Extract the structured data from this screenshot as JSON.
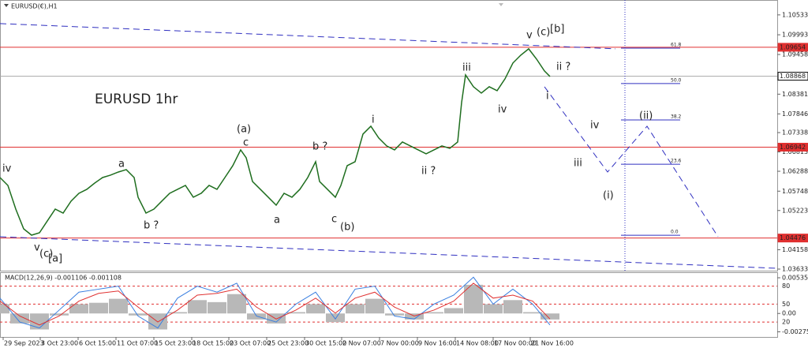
{
  "chart_data": [
    {
      "type": "line",
      "title": "EURUSD(€),H1",
      "subtitle": "EURUSD 1hr",
      "subtitle_color": "#ee1c1c",
      "color": "#1f6e1f",
      "xlim": [
        0,
        985
      ],
      "ylim": [
        1.0359,
        1.1083
      ],
      "xticks": [
        {
          "value": 4,
          "label": "29 Sep 2023"
        },
        {
          "value": 51,
          "label": "3 Oct 23:00"
        },
        {
          "value": 99,
          "label": "6 Oct 15:00"
        },
        {
          "value": 147,
          "label": "11 Oct 07:00"
        },
        {
          "value": 195,
          "label": "15 Oct 23:00"
        },
        {
          "value": 243,
          "label": "18 Oct 15:00"
        },
        {
          "value": 290,
          "label": "23 Oct 07:00"
        },
        {
          "value": 338,
          "label": "25 Oct 23:00"
        },
        {
          "value": 386,
          "label": "30 Oct 15:00"
        },
        {
          "value": 433,
          "label": "2 Nov 07:00"
        },
        {
          "value": 481,
          "label": "7 Nov 00:00"
        },
        {
          "value": 529,
          "label": "9 Nov 16:00"
        },
        {
          "value": 577,
          "label": "14 Nov 08:00"
        },
        {
          "value": 625,
          "label": "17 Nov 00:00"
        },
        {
          "value": 672,
          "label": "21 Nov 16:00"
        }
      ],
      "yticks": [
        1.10533,
        1.09993,
        1.09458,
        1.08381,
        1.07846,
        1.07338,
        1.06813,
        1.06288,
        1.05748,
        1.05223,
        1.04158,
        1.03633
      ],
      "x": [
        0,
        10,
        20,
        30,
        40,
        50,
        60,
        70,
        80,
        90,
        100,
        110,
        120,
        130,
        140,
        150,
        160,
        170,
        175,
        185,
        195,
        205,
        215,
        225,
        235,
        245,
        255,
        265,
        275,
        285,
        295,
        305,
        312,
        320,
        330,
        340,
        350,
        360,
        370,
        380,
        390,
        400,
        405,
        415,
        425,
        432,
        440,
        450,
        460,
        470,
        480,
        490,
        500,
        510,
        520,
        530,
        540,
        550,
        560,
        570,
        580,
        585,
        590,
        600,
        610,
        620,
        630,
        640,
        650,
        660,
        670,
        680,
        690,
        697
      ],
      "values": [
        1.06118,
        1.05904,
        1.05261,
        1.04725,
        1.04554,
        1.04618,
        1.0494,
        1.05261,
        1.05154,
        1.05476,
        1.0569,
        1.05797,
        1.05968,
        1.06118,
        1.06183,
        1.06268,
        1.06333,
        1.06118,
        1.05583,
        1.05154,
        1.05261,
        1.05476,
        1.0569,
        1.05797,
        1.05904,
        1.05583,
        1.0569,
        1.05904,
        1.05797,
        1.06118,
        1.0644,
        1.06868,
        1.06654,
        1.06011,
        1.05797,
        1.05583,
        1.05368,
        1.0569,
        1.05583,
        1.05797,
        1.06118,
        1.06547,
        1.06011,
        1.05797,
        1.05583,
        1.05904,
        1.0644,
        1.06547,
        1.07297,
        1.07511,
        1.0719,
        1.06976,
        1.06868,
        1.07083,
        1.06976,
        1.06868,
        1.06761,
        1.06868,
        1.06976,
        1.06911,
        1.07083,
        1.08154,
        1.08904,
        1.08583,
        1.08411,
        1.08583,
        1.08476,
        1.08797,
        1.09226,
        1.0944,
        1.09612,
        1.09333,
        1.09011,
        1.08861
      ],
      "hlines": [
        {
          "value": 1.09654,
          "color": "#e03030"
        },
        {
          "value": 1.08868,
          "color": "#aaaaaa"
        },
        {
          "value": 1.06942,
          "color": "#e03030"
        },
        {
          "value": 1.04476,
          "color": "#e03030"
        }
      ],
      "trendlines": [
        {
          "x": [
            0,
            780
          ],
          "y": [
            1.10297,
            1.09612
          ]
        },
        {
          "x": [
            0,
            985
          ],
          "y": [
            1.04511,
            1.03654
          ]
        },
        {
          "x": [
            690,
            770,
            820,
            910
          ],
          "y": [
            1.08583,
            1.06268,
            1.07511,
            1.04511
          ]
        }
      ],
      "trend_color": "#3030c0",
      "vline_x": 792,
      "fib_x": [
        787,
        862
      ],
      "fib": [
        {
          "label": "61.8",
          "value": 1.0963
        },
        {
          "label": "50.0",
          "value": 1.0867
        },
        {
          "label": "38.2",
          "value": 1.0768
        },
        {
          "label": "23.6",
          "value": 1.0648
        },
        {
          "label": "0.0",
          "value": 1.0455
        }
      ],
      "annotations": [
        {
          "text": "iv",
          "color": "#e020e0"
        },
        {
          "text": "v",
          "color": "#e020e0"
        },
        {
          "text": "(c)",
          "color": "#2020b0"
        },
        {
          "text": "[a]",
          "color": "#208020"
        },
        {
          "text": "a",
          "color": "#e020e0"
        },
        {
          "text": "b ?",
          "color": "#e020e0"
        },
        {
          "text": "(a)",
          "color": "#2020b0"
        },
        {
          "text": "c",
          "color": "#e020e0"
        },
        {
          "text": "a",
          "color": "#e020e0"
        },
        {
          "text": "b ?",
          "color": "#e020e0"
        },
        {
          "text": "c",
          "color": "#e020e0"
        },
        {
          "text": "(b)",
          "color": "#2020b0"
        },
        {
          "text": "i",
          "color": "#e020e0"
        },
        {
          "text": "ii ?",
          "color": "#e020e0"
        },
        {
          "text": "iii",
          "color": "#e020e0"
        },
        {
          "text": "iv",
          "color": "#e020e0"
        },
        {
          "text": "v",
          "color": "#e020e0"
        },
        {
          "text": "(c)",
          "color": "#2020b0"
        },
        {
          "text": "[b]",
          "color": "#208020"
        },
        {
          "text": "ii ?",
          "color": "#e020e0"
        },
        {
          "text": "i",
          "color": "#e020e0"
        },
        {
          "text": "iv",
          "color": "#e020e0"
        },
        {
          "text": "iii",
          "color": "#e020e0"
        },
        {
          "text": "(ii)",
          "color": "#2020b0"
        },
        {
          "text": "(i)",
          "color": "#2020b0"
        }
      ]
    },
    {
      "type": "macd",
      "title": "MACD(12,26,9) -0.001106 -0.001108",
      "xlim": [
        0,
        985
      ],
      "ylim": [
        -0.00352,
        0.00606
      ],
      "yticks": [
        0.005351,
        {
          "value": 0,
          "label": "0.00"
        },
        -0.002751
      ],
      "y2lim": [
        -5,
        102
      ],
      "y2ticks": [
        80,
        50,
        20
      ],
      "level_color": "#e03030",
      "x": [
        0,
        25,
        50,
        75,
        100,
        125,
        150,
        175,
        200,
        225,
        250,
        275,
        300,
        325,
        350,
        375,
        400,
        425,
        450,
        475,
        500,
        525,
        550,
        575,
        600,
        625,
        650,
        675,
        697
      ],
      "series": [
        {
          "name": "MACD",
          "color": "#b8b8b8",
          "values": [
            0.0014,
            -0.0015,
            -0.0024,
            -0.0003,
            0.0014,
            0.0016,
            0.0022,
            -0.0003,
            -0.0024,
            0.0002,
            0.002,
            0.0017,
            0.0029,
            -0.0009,
            -0.0015,
            0.0002,
            0.0014,
            -0.0013,
            0.0014,
            0.0022,
            -0.0003,
            -0.0009,
            0.0002,
            0.0008,
            0.0043,
            0.0014,
            0.002,
            0.0002,
            -0.0009
          ]
        },
        {
          "name": "Main",
          "color": "#3a7fe0",
          "axis": "y2",
          "values": [
            60,
            20,
            10,
            40,
            70,
            75,
            80,
            30,
            10,
            60,
            80,
            70,
            85,
            30,
            20,
            50,
            70,
            25,
            75,
            80,
            30,
            25,
            50,
            65,
            95,
            50,
            75,
            50,
            15
          ]
        },
        {
          "name": "Signal",
          "color": "#e03030",
          "axis": "y2",
          "values": [
            55,
            30,
            15,
            30,
            55,
            68,
            72,
            45,
            20,
            40,
            65,
            68,
            75,
            45,
            25,
            40,
            60,
            35,
            60,
            70,
            45,
            30,
            40,
            55,
            85,
            60,
            65,
            55,
            25
          ]
        }
      ]
    }
  ]
}
